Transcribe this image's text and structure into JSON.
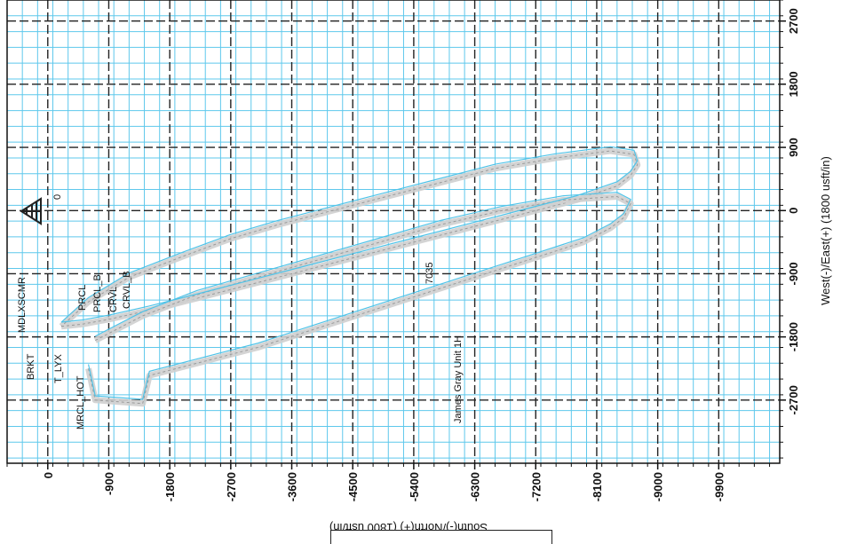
{
  "chart_data": {
    "type": "line",
    "title": "",
    "xlabel": "South(-)/North(+) (1800 usft/in)",
    "ylabel": "West(-)/East(+) (1800 usft/in)",
    "x_ticks": [
      0,
      -900,
      -1800,
      -2700,
      -3600,
      -4500,
      -5400,
      -6300,
      -7200,
      -8100,
      -9000,
      -9900
    ],
    "x_tick_labels": [
      "0",
      "-900",
      "-1800",
      "-2700",
      "-3600",
      "-4500",
      "-5400",
      "-6300",
      "-7200",
      "-8100",
      "-9000",
      "-9900"
    ],
    "y_ticks": [
      2700,
      1800,
      900,
      0,
      -900,
      -1800,
      -2700
    ],
    "y_tick_labels": [
      "2700",
      "1800",
      "900",
      "0",
      "-900",
      "-1800",
      "-2700"
    ],
    "xlim": [
      600,
      -10800
    ],
    "ylim": [
      3000,
      -3600
    ],
    "grid": true,
    "colors": {
      "grid_minor": "#5ec8ec",
      "grid_major": "#222222",
      "well_path": "#cfcfcf",
      "plan_line": "#4fc3e8",
      "text": "#111111"
    },
    "series": [
      {
        "name": "",
        "style": "thick-grey",
        "x": [
          -200,
          -500,
          -900,
          -1500,
          -2200,
          -3000,
          -3800,
          -4600,
          -5400,
          -6200,
          -7000,
          -7800,
          -8400,
          -8600,
          -8700,
          -8650,
          -8300,
          -7500,
          -6600,
          -5800,
          -5000,
          -4200,
          -3400,
          -2700,
          -2000,
          -1200,
          -600,
          -200
        ],
        "y": [
          -1650,
          -1620,
          -1550,
          -1420,
          -1250,
          -1050,
          -850,
          -650,
          -450,
          -250,
          -50,
          150,
          350,
          500,
          650,
          800,
          850,
          750,
          600,
          400,
          200,
          0,
          -200,
          -400,
          -650,
          -950,
          -1300,
          -1650
        ]
      },
      {
        "name": "",
        "style": "thick-grey",
        "x": [
          -600,
          -700,
          -1400,
          -1500,
          -2300,
          -3100,
          -3900,
          -4700,
          -5500,
          -6300,
          -7100,
          -7900,
          -8300,
          -8500,
          -8600,
          -8400,
          -7600,
          -6700,
          -5800,
          -4900,
          -4000,
          -3100,
          -2200,
          -1400,
          -700
        ],
        "y": [
          -2250,
          -2700,
          -2750,
          -2350,
          -2150,
          -1950,
          -1700,
          -1450,
          -1200,
          -950,
          -700,
          -450,
          -250,
          -100,
          100,
          200,
          150,
          0,
          -200,
          -450,
          -700,
          -950,
          -1200,
          -1500,
          -1850
        ]
      }
    ],
    "annotations": [
      "MDLXSCMR",
      "BRKT",
      "T_LYX",
      "MRCL_HOT",
      "PRCL",
      "PRCL_B",
      "CRVL",
      "CRVL_B",
      "7035",
      "James Gray Unit 1H",
      "0"
    ]
  }
}
